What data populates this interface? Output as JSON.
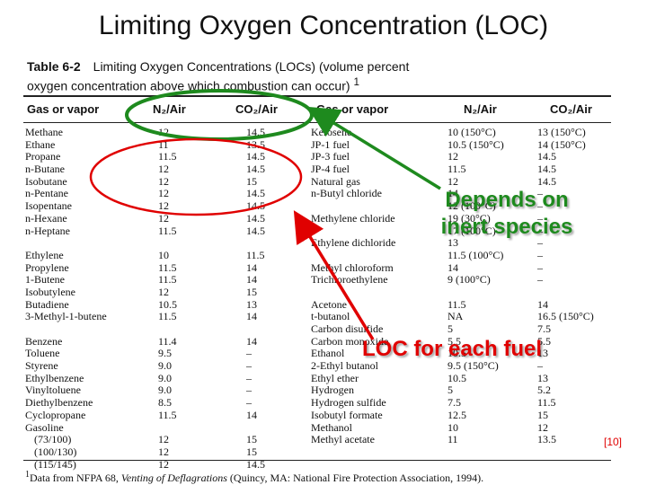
{
  "slide": {
    "title": "Limiting Oxygen Concentration (LOC)",
    "reference": "[10]"
  },
  "table": {
    "caption_label": "Table 6-2",
    "caption_line1": "Limiting Oxygen Concentrations (LOCs) (volume percent",
    "caption_line2": "oxygen concentration above which combustion can occur)",
    "caption_sup": "1",
    "headers": {
      "gas": "Gas or vapor",
      "n2": "N₂/Air",
      "co2": "CO₂/Air"
    },
    "left_rows": [
      [
        "Methane",
        "12",
        "14.5"
      ],
      [
        "Ethane",
        "11",
        "13.5"
      ],
      [
        "Propane",
        "11.5",
        "14.5"
      ],
      [
        "n-Butane",
        "12",
        "14.5"
      ],
      [
        "Isobutane",
        "12",
        "15"
      ],
      [
        "n-Pentane",
        "12",
        "14.5"
      ],
      [
        "Isopentane",
        "12",
        "14.5"
      ],
      [
        "n-Hexane",
        "12",
        "14.5"
      ],
      [
        "n-Heptane",
        "11.5",
        "14.5"
      ],
      [
        "",
        "",
        ""
      ],
      [
        "Ethylene",
        "10",
        "11.5"
      ],
      [
        "Propylene",
        "11.5",
        "14"
      ],
      [
        "1-Butene",
        "11.5",
        "14"
      ],
      [
        "Isobutylene",
        "12",
        "15"
      ],
      [
        "Butadiene",
        "10.5",
        "13"
      ],
      [
        "3-Methyl-1-butene",
        "11.5",
        "14"
      ],
      [
        "",
        "",
        ""
      ],
      [
        "Benzene",
        "11.4",
        "14"
      ],
      [
        "Toluene",
        "9.5",
        "–"
      ],
      [
        "Styrene",
        "9.0",
        "–"
      ],
      [
        "Ethylbenzene",
        "9.0",
        "–"
      ],
      [
        "Vinyltoluene",
        "9.0",
        "–"
      ],
      [
        "Diethylbenzene",
        "8.5",
        "–"
      ],
      [
        "Cyclopropane",
        "11.5",
        "14"
      ],
      [
        "Gasoline",
        "",
        ""
      ],
      [
        "   (73/100)",
        "12",
        "15"
      ],
      [
        "   (100/130)",
        "12",
        "15"
      ],
      [
        "   (115/145)",
        "12",
        "14.5"
      ]
    ],
    "right_rows": [
      [
        "Kerosene",
        "10 (150°C)",
        "13 (150°C)"
      ],
      [
        "JP-1 fuel",
        "10.5 (150°C)",
        "14 (150°C)"
      ],
      [
        "JP-3 fuel",
        "12",
        "14.5"
      ],
      [
        "JP-4 fuel",
        "11.5",
        "14.5"
      ],
      [
        "Natural gas",
        "12",
        "14.5"
      ],
      [
        "n-Butyl chloride",
        "14",
        "–"
      ],
      [
        "",
        "12 (100°C)",
        "–"
      ],
      [
        "Methylene chloride",
        "19 (30°C)",
        "–"
      ],
      [
        "",
        "17 (100°C)",
        "–"
      ],
      [
        "Ethylene dichloride",
        "13",
        "–"
      ],
      [
        "",
        "11.5 (100°C)",
        "–"
      ],
      [
        "Methyl chloroform",
        "14",
        "–"
      ],
      [
        "Trichloroethylene",
        "9 (100°C)",
        "–"
      ],
      [
        "",
        "",
        ""
      ],
      [
        "Acetone",
        "11.5",
        "14"
      ],
      [
        "t-butanol",
        "NA",
        "16.5 (150°C)"
      ],
      [
        "Carbon disulfide",
        "5",
        "7.5"
      ],
      [
        "Carbon monoxide",
        "5.5",
        "5.5"
      ],
      [
        "Ethanol",
        "10.5",
        "13"
      ],
      [
        "2-Ethyl butanol",
        "9.5 (150°C)",
        "–"
      ],
      [
        "Ethyl ether",
        "10.5",
        "13"
      ],
      [
        "Hydrogen",
        "5",
        "5.2"
      ],
      [
        "Hydrogen sulfide",
        "7.5",
        "11.5"
      ],
      [
        "Isobutyl formate",
        "12.5",
        "15"
      ],
      [
        "Methanol",
        "10",
        "12"
      ],
      [
        "Methyl acetate",
        "11",
        "13.5"
      ]
    ],
    "footnote_sup": "1",
    "footnote_text": "Data from NFPA 68, ",
    "footnote_italic": "Venting of Deflagrations",
    "footnote_tail": " (Quincy, MA: National Fire Protection Association, 1994)."
  },
  "annotations": {
    "green_callout_line1": "Depends on",
    "green_callout_line2": "inert species",
    "red_callout": "LOC for each fuel",
    "green_color": "#1e8a1e",
    "red_color": "#e00000"
  }
}
